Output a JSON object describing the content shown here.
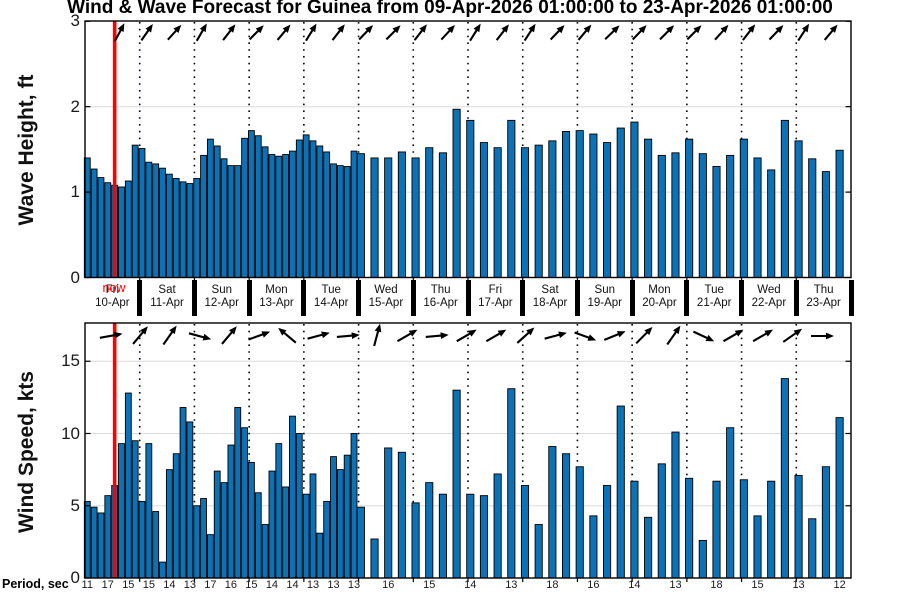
{
  "title": "Wind & Wave Forecast for Guinea from 09-Apr-2026 01:00:00 to 23-Apr-2026 01:00:00",
  "now": {
    "label": "now",
    "hour": 13
  },
  "colors": {
    "bar": "#0c72b8",
    "bar_edge": "#000000",
    "now_line": "#ff0000",
    "grid": "#dcdcdc",
    "axis": "#000000"
  },
  "days": [
    {
      "weekday": "Fri",
      "date": "10-Apr"
    },
    {
      "weekday": "Sat",
      "date": "11-Apr"
    },
    {
      "weekday": "Sun",
      "date": "12-Apr"
    },
    {
      "weekday": "Mon",
      "date": "13-Apr"
    },
    {
      "weekday": "Tue",
      "date": "14-Apr"
    },
    {
      "weekday": "Wed",
      "date": "15-Apr"
    },
    {
      "weekday": "Thu",
      "date": "16-Apr"
    },
    {
      "weekday": "Fri",
      "date": "17-Apr"
    },
    {
      "weekday": "Sat",
      "date": "18-Apr"
    },
    {
      "weekday": "Sun",
      "date": "19-Apr"
    },
    {
      "weekday": "Mon",
      "date": "20-Apr"
    },
    {
      "weekday": "Tue",
      "date": "21-Apr"
    },
    {
      "weekday": "Wed",
      "date": "22-Apr"
    },
    {
      "weekday": "Thu",
      "date": "23-Apr"
    }
  ],
  "period": {
    "label": "Period, sec",
    "entries": [
      [
        1,
        11
      ],
      [
        10,
        17
      ],
      [
        19,
        15
      ],
      [
        28,
        15
      ],
      [
        37,
        14
      ],
      [
        46,
        13
      ],
      [
        55,
        17
      ],
      [
        64,
        16
      ],
      [
        73,
        15
      ],
      [
        82,
        14
      ],
      [
        91,
        14
      ],
      [
        100,
        13
      ],
      [
        109,
        13
      ],
      [
        118,
        13
      ],
      [
        133,
        16
      ],
      [
        151,
        15
      ],
      [
        169,
        14
      ],
      [
        187,
        13
      ],
      [
        205,
        18
      ],
      [
        223,
        16
      ],
      [
        241,
        14
      ],
      [
        259,
        13
      ],
      [
        277,
        18
      ],
      [
        295,
        15
      ],
      [
        313,
        13
      ],
      [
        331,
        12
      ]
    ]
  },
  "chart_data": [
    {
      "type": "bar",
      "ylabel": "Wave Height, ft",
      "xlabel": "",
      "ylim": [
        0,
        3
      ],
      "yticks": [
        0,
        1,
        2,
        3
      ],
      "grid": true,
      "x_unit": "hours after 10-Apr-2026 00:00",
      "bars": [
        [
          1,
          1.4
        ],
        [
          4,
          1.27
        ],
        [
          7,
          1.17
        ],
        [
          10,
          1.11
        ],
        [
          13,
          1.08
        ],
        [
          16,
          1.06
        ],
        [
          19,
          1.13
        ],
        [
          22,
          1.55
        ],
        [
          25,
          1.51
        ],
        [
          28,
          1.35
        ],
        [
          31,
          1.33
        ],
        [
          34,
          1.28
        ],
        [
          37,
          1.21
        ],
        [
          40,
          1.16
        ],
        [
          43,
          1.12
        ],
        [
          46,
          1.1
        ],
        [
          49,
          1.16
        ],
        [
          52,
          1.43
        ],
        [
          55,
          1.62
        ],
        [
          58,
          1.54
        ],
        [
          61,
          1.39
        ],
        [
          64,
          1.31
        ],
        [
          67,
          1.31
        ],
        [
          70,
          1.63
        ],
        [
          73,
          1.72
        ],
        [
          76,
          1.66
        ],
        [
          79,
          1.53
        ],
        [
          82,
          1.44
        ],
        [
          85,
          1.42
        ],
        [
          88,
          1.44
        ],
        [
          91,
          1.48
        ],
        [
          94,
          1.61
        ],
        [
          97,
          1.67
        ],
        [
          100,
          1.6
        ],
        [
          103,
          1.54
        ],
        [
          106,
          1.47
        ],
        [
          109,
          1.33
        ],
        [
          112,
          1.31
        ],
        [
          115,
          1.3
        ],
        [
          118,
          1.48
        ],
        [
          121,
          1.45
        ],
        [
          127,
          1.4
        ],
        [
          133,
          1.4
        ],
        [
          139,
          1.47
        ],
        [
          145,
          1.4
        ],
        [
          151,
          1.52
        ],
        [
          157,
          1.46
        ],
        [
          163,
          1.97
        ],
        [
          169,
          1.84
        ],
        [
          175,
          1.58
        ],
        [
          181,
          1.52
        ],
        [
          187,
          1.84
        ],
        [
          193,
          1.52
        ],
        [
          199,
          1.55
        ],
        [
          205,
          1.6
        ],
        [
          211,
          1.71
        ],
        [
          217,
          1.72
        ],
        [
          223,
          1.68
        ],
        [
          229,
          1.58
        ],
        [
          235,
          1.75
        ],
        [
          241,
          1.82
        ],
        [
          247,
          1.62
        ],
        [
          253,
          1.43
        ],
        [
          259,
          1.46
        ],
        [
          265,
          1.62
        ],
        [
          271,
          1.45
        ],
        [
          277,
          1.3
        ],
        [
          283,
          1.43
        ],
        [
          289,
          1.62
        ],
        [
          295,
          1.4
        ],
        [
          301,
          1.26
        ],
        [
          307,
          1.84
        ],
        [
          313,
          1.6
        ],
        [
          319,
          1.39
        ],
        [
          325,
          1.24
        ],
        [
          331,
          1.49
        ]
      ],
      "arrows": [
        [
          15,
          62
        ],
        [
          27,
          55
        ],
        [
          39,
          48
        ],
        [
          51,
          60
        ],
        [
          63,
          52
        ],
        [
          75,
          45
        ],
        [
          87,
          50
        ],
        [
          99,
          58
        ],
        [
          111,
          52
        ],
        [
          123,
          46
        ],
        [
          135,
          45
        ],
        [
          147,
          52
        ],
        [
          159,
          47
        ],
        [
          171,
          58
        ],
        [
          183,
          52
        ],
        [
          195,
          57
        ],
        [
          207,
          46
        ],
        [
          219,
          50
        ],
        [
          231,
          44
        ],
        [
          243,
          46
        ],
        [
          255,
          45
        ],
        [
          267,
          45
        ],
        [
          279,
          48
        ],
        [
          291,
          52
        ],
        [
          303,
          46
        ],
        [
          315,
          57
        ],
        [
          327,
          50
        ]
      ]
    },
    {
      "type": "bar",
      "ylabel": "Wind Speed, kts",
      "xlabel": "",
      "ylim": [
        0,
        17.6
      ],
      "yticks": [
        0,
        5,
        10,
        15
      ],
      "grid": true,
      "x_unit": "hours after 10-Apr-2026 00:00",
      "bars": [
        [
          1,
          5.3
        ],
        [
          4,
          4.9
        ],
        [
          7,
          4.5
        ],
        [
          10,
          5.7
        ],
        [
          13,
          6.4
        ],
        [
          16,
          9.3
        ],
        [
          19,
          12.8
        ],
        [
          22,
          9.5
        ],
        [
          25,
          5.3
        ],
        [
          28,
          9.3
        ],
        [
          31,
          4.6
        ],
        [
          34,
          1.1
        ],
        [
          37,
          7.5
        ],
        [
          40,
          8.6
        ],
        [
          43,
          11.8
        ],
        [
          46,
          10.8
        ],
        [
          49,
          5.0
        ],
        [
          52,
          5.5
        ],
        [
          55,
          3.0
        ],
        [
          58,
          7.4
        ],
        [
          61,
          6.6
        ],
        [
          64,
          9.2
        ],
        [
          67,
          11.8
        ],
        [
          70,
          10.4
        ],
        [
          73,
          8.0
        ],
        [
          76,
          5.9
        ],
        [
          79,
          3.7
        ],
        [
          82,
          7.4
        ],
        [
          85,
          9.3
        ],
        [
          88,
          6.3
        ],
        [
          91,
          11.2
        ],
        [
          94,
          10.0
        ],
        [
          97,
          5.8
        ],
        [
          100,
          7.2
        ],
        [
          103,
          3.1
        ],
        [
          106,
          5.3
        ],
        [
          109,
          8.4
        ],
        [
          112,
          7.5
        ],
        [
          115,
          8.5
        ],
        [
          118,
          10.0
        ],
        [
          121,
          4.9
        ],
        [
          127,
          2.7
        ],
        [
          133,
          9.0
        ],
        [
          139,
          8.7
        ],
        [
          145,
          5.2
        ],
        [
          151,
          6.6
        ],
        [
          157,
          5.8
        ],
        [
          163,
          13.0
        ],
        [
          169,
          5.8
        ],
        [
          175,
          5.7
        ],
        [
          181,
          7.2
        ],
        [
          187,
          13.1
        ],
        [
          193,
          6.4
        ],
        [
          199,
          3.7
        ],
        [
          205,
          9.1
        ],
        [
          211,
          8.6
        ],
        [
          217,
          7.7
        ],
        [
          223,
          4.3
        ],
        [
          229,
          6.4
        ],
        [
          235,
          11.9
        ],
        [
          241,
          6.7
        ],
        [
          247,
          4.2
        ],
        [
          253,
          7.9
        ],
        [
          259,
          10.1
        ],
        [
          265,
          6.9
        ],
        [
          271,
          2.6
        ],
        [
          277,
          6.7
        ],
        [
          283,
          10.4
        ],
        [
          289,
          6.8
        ],
        [
          295,
          4.3
        ],
        [
          301,
          6.7
        ],
        [
          307,
          13.8
        ],
        [
          313,
          7.1
        ],
        [
          319,
          4.1
        ],
        [
          325,
          7.7
        ],
        [
          331,
          11.1
        ]
      ],
      "arrows": [
        [
          11,
          10
        ],
        [
          24,
          50
        ],
        [
          37,
          55
        ],
        [
          50,
          -15
        ],
        [
          63,
          50
        ],
        [
          76,
          20
        ],
        [
          89,
          140
        ],
        [
          102,
          15
        ],
        [
          115,
          5
        ],
        [
          128,
          75
        ],
        [
          141,
          30
        ],
        [
          154,
          5
        ],
        [
          167,
          30
        ],
        [
          180,
          30
        ],
        [
          193,
          42
        ],
        [
          206,
          15
        ],
        [
          219,
          -20
        ],
        [
          232,
          22
        ],
        [
          245,
          45
        ],
        [
          258,
          55
        ],
        [
          271,
          -25
        ],
        [
          284,
          30
        ],
        [
          297,
          30
        ],
        [
          310,
          35
        ],
        [
          323,
          0
        ]
      ]
    }
  ]
}
